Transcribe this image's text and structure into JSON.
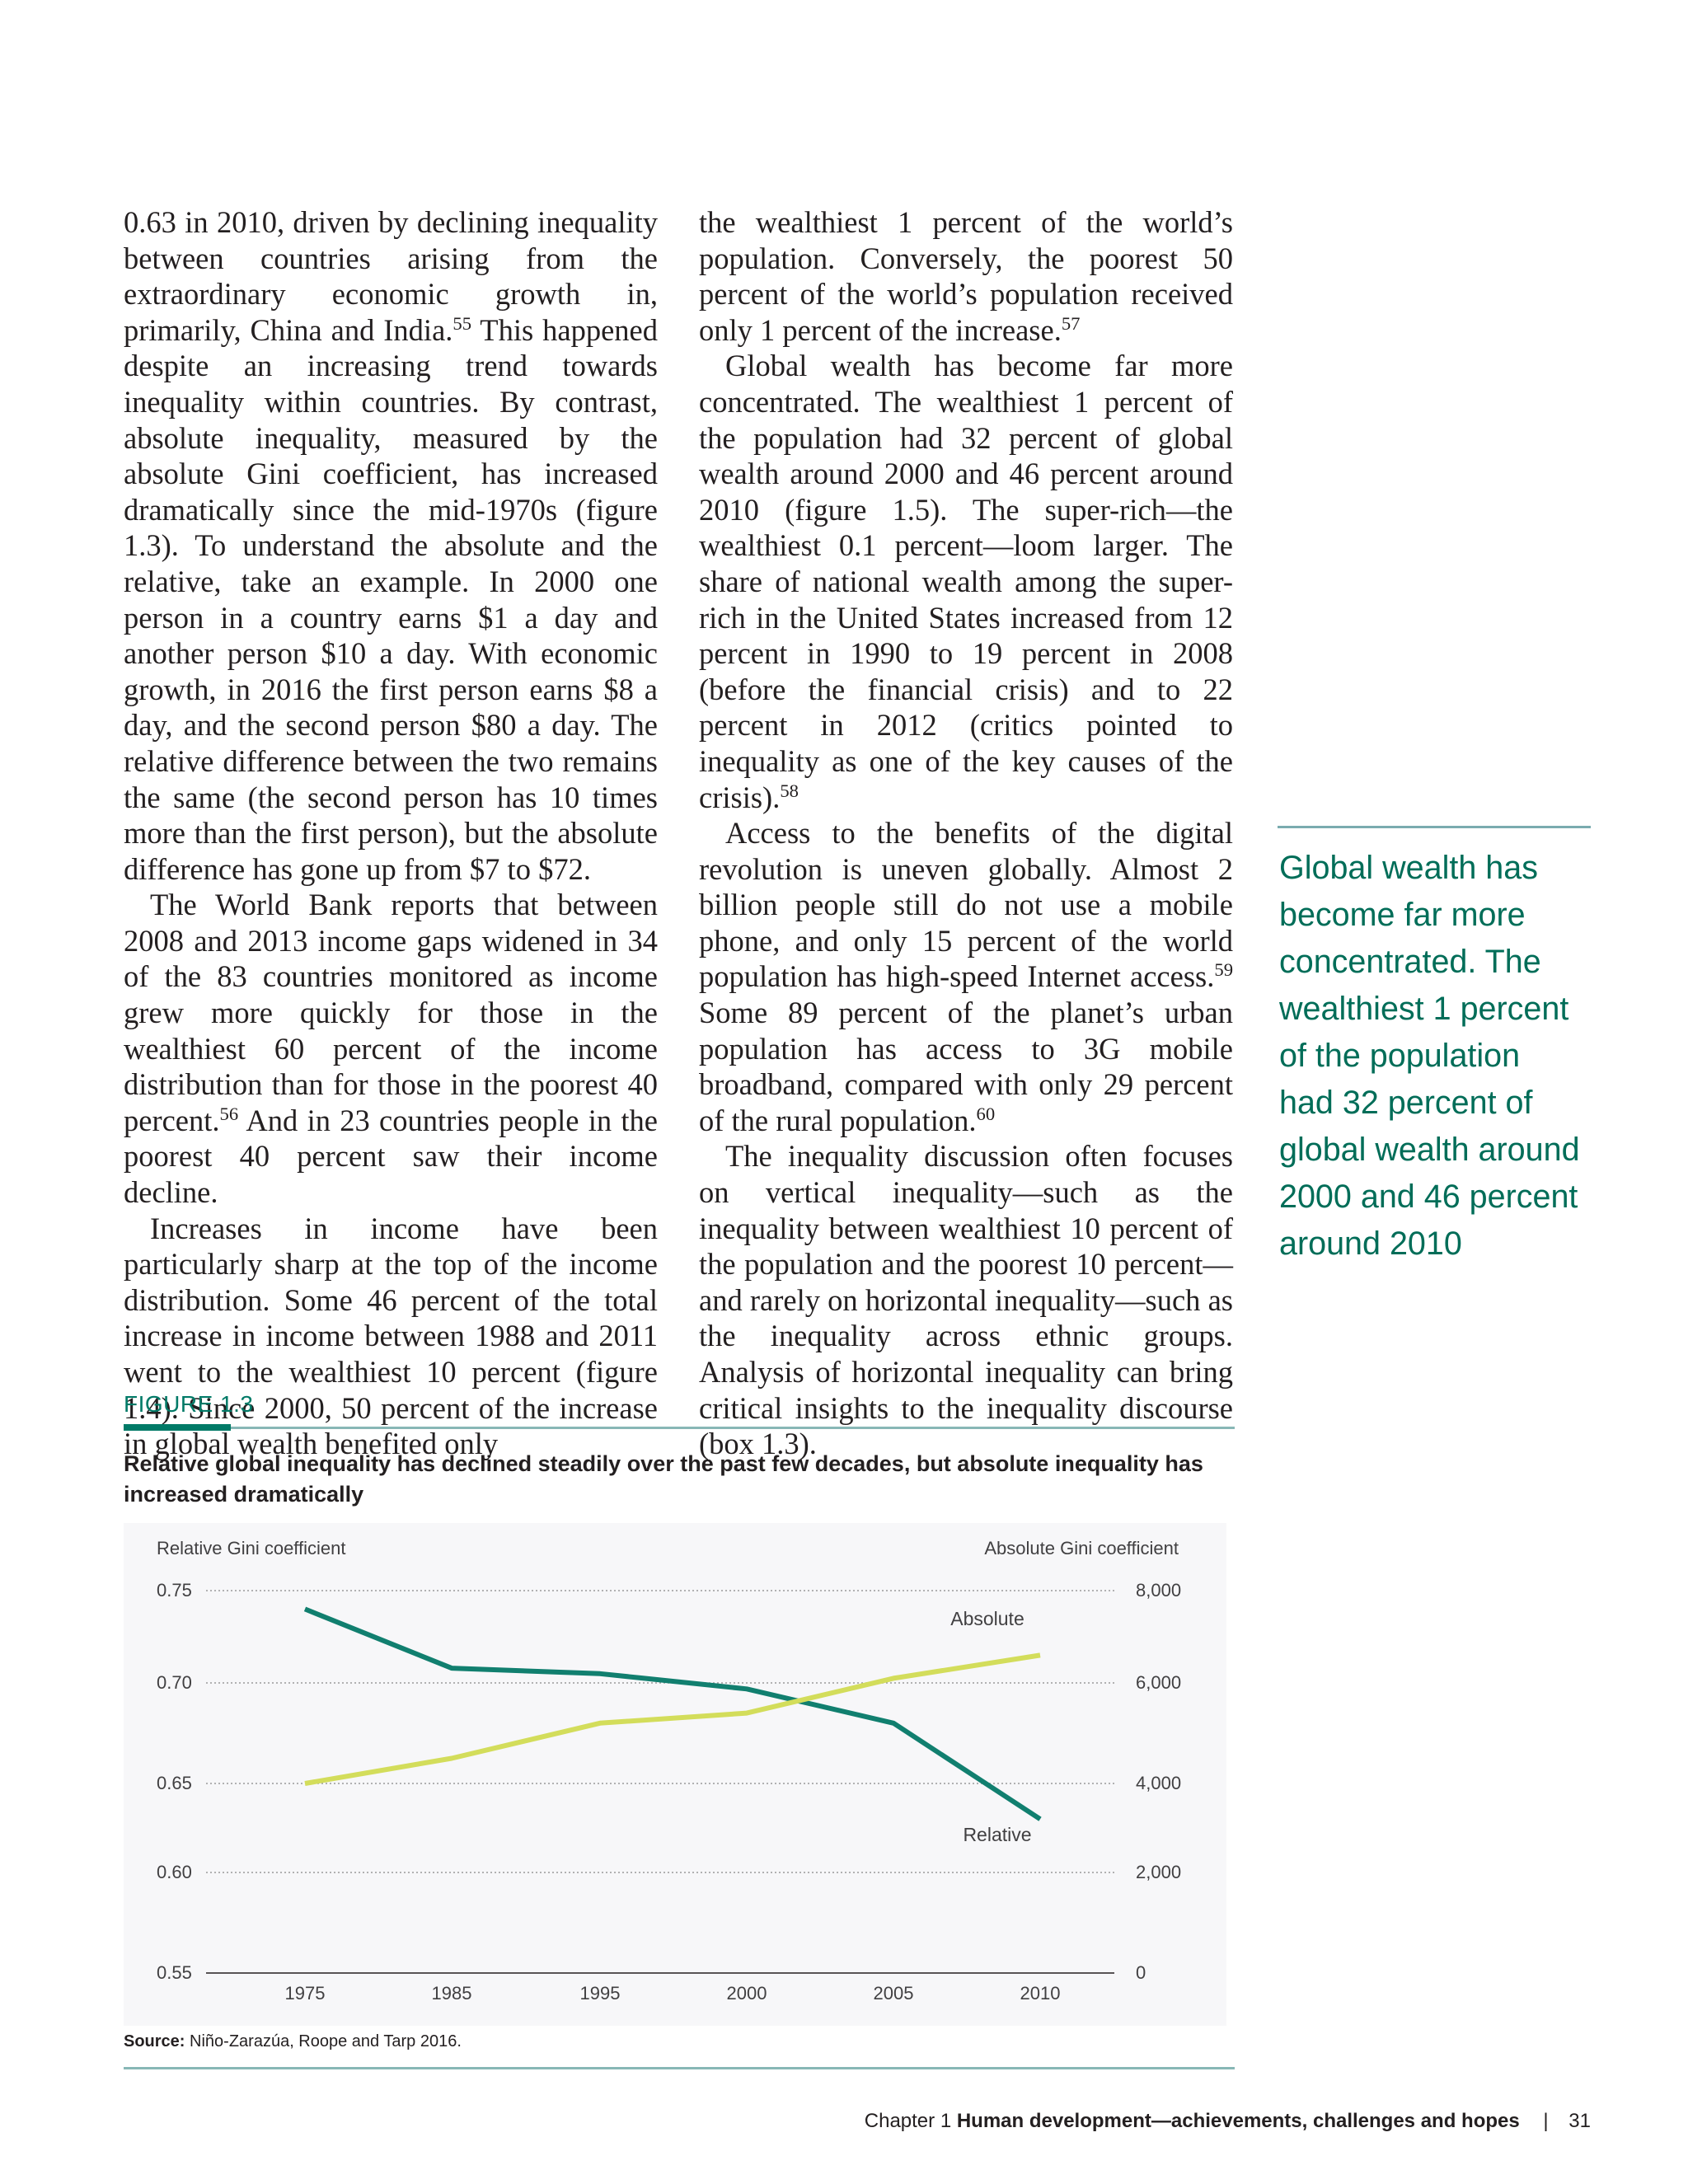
{
  "col1": {
    "p1": [
      {
        "t": "0.63 in 2010, driven by declining inequality between countries arising from the extraordinary economic growth in, primarily, China and India."
      },
      {
        "sup": "55"
      },
      {
        "t": " This happened despite an increasing trend towards inequality within countries. By contrast, absolute inequality, measured by the absolute Gini coefficient, has increased dramatically since the mid-1970s (figure 1.3). To understand the absolute and the relative, take an example. In 2000 one person in a country earns $1 a day and another person $10 a day. With economic growth, in 2016 the first person earns $8 a day, and the second person $80 a day. The relative difference between the two remains the same (the second person has 10 times more than the first person), but the absolute difference has gone up from $7 to $72."
      }
    ],
    "p2": [
      {
        "t": "The World Bank reports that between 2008 and 2013 income gaps widened in 34 of the 83 countries monitored as income grew more quickly for those in the wealthiest 60 percent of the income distribution than for those in the poorest 40 percent."
      },
      {
        "sup": "56"
      },
      {
        "t": " And in 23 countries people in the poorest 40 percent saw their income decline."
      }
    ],
    "p3": [
      {
        "t": "Increases in income have been particularly sharp at the top of the income distribution. Some 46 percent of the total increase in income between 1988 and 2011 went to the wealthiest 10 percent (figure 1.4). Since 2000, 50 percent of the increase in global wealth benefited only"
      }
    ]
  },
  "col2": {
    "p1": [
      {
        "t": "the wealthiest 1 percent of the world’s population. Conversely, the poorest 50 percent of the world’s population received only 1 percent of the increase."
      },
      {
        "sup": "57"
      }
    ],
    "p2": [
      {
        "t": "Global wealth has become far more concentrated. The wealthiest 1 percent of the population had 32 percent of global wealth around 2000 and 46 percent around 2010 (figure 1.5). The super-rich—the wealthiest 0.1 percent—loom larger. The share of national wealth among the super-rich in the United States increased from 12 percent in 1990 to 19 percent in 2008 (before the financial crisis) and to 22 percent in 2012 (critics pointed to inequality as one of the key causes of the crisis)."
      },
      {
        "sup": "58"
      }
    ],
    "p3": [
      {
        "t": "Access to the benefits of the digital revolution is uneven globally. Almost 2 billion people still do not use a mobile phone, and only 15 percent of the world population has high-speed Internet access."
      },
      {
        "sup": "59"
      },
      {
        "t": " Some 89 percent of the planet’s urban population has access to 3G mobile broadband, compared with only 29 percent of the rural population."
      },
      {
        "sup": "60"
      }
    ],
    "p4": [
      {
        "t": "The inequality discussion often focuses on vertical inequality—such as the inequality between wealthiest 10 percent of the population and the poorest 10 percent—and rarely on horizontal inequality—such as the inequality across ethnic groups. Analysis of horizontal inequality can bring critical insights to the inequality discourse (box 1.3)."
      }
    ]
  },
  "pullquote": {
    "lines": [
      "Global wealth has",
      "become far more",
      "concentrated. The",
      "wealthiest 1 percent",
      "of the population",
      "had 32 percent of",
      "global wealth around",
      "2000 and 46 percent",
      "around 2010"
    ]
  },
  "figure": {
    "label": "FIGURE 1.3",
    "title": "Relative global inequality has declined steadily over the past few decades, but absolute inequality has increased dramatically",
    "source_label": "Source:",
    "source_text": " Niño-Zarazúa, Roope and Tarp 2016."
  },
  "chart_data": {
    "type": "line",
    "x": [
      "1975",
      "1985",
      "1995",
      "2000",
      "2005",
      "2010"
    ],
    "y_left_label": "Relative Gini coefficient",
    "y_right_label": "Absolute Gini coefficient",
    "y_left_ticks": [
      "0.75",
      "0.70",
      "0.65",
      "0.60",
      "0.55"
    ],
    "y_right_ticks": [
      "8,000",
      "6,000",
      "4,000",
      "2,000",
      "0"
    ],
    "series": [
      {
        "name": "Relative",
        "axis": "left",
        "color": "#117f6f",
        "points": [
          {
            "x": "1975",
            "y": 0.74
          },
          {
            "x": "1985",
            "y": 0.708
          },
          {
            "x": "1995",
            "y": 0.705
          },
          {
            "x": "2000",
            "y": 0.697
          },
          {
            "x": "2005",
            "y": 0.68
          },
          {
            "x": "2010",
            "y": 0.63
          }
        ]
      },
      {
        "name": "Absolute",
        "axis": "right",
        "color": "#d3dd5b",
        "points": [
          {
            "x": "1975",
            "y": 4000
          },
          {
            "x": "1985",
            "y": 4500
          },
          {
            "x": "1995",
            "y": 5200
          },
          {
            "x": "2000",
            "y": 5400
          },
          {
            "x": "2005",
            "y": 6100
          },
          {
            "x": "2010",
            "y": 6600
          }
        ]
      }
    ]
  },
  "footer": {
    "chapter": "Chapter 1",
    "title": "Human development—achievements, challenges and hopes",
    "sep": "|",
    "page": "31"
  }
}
